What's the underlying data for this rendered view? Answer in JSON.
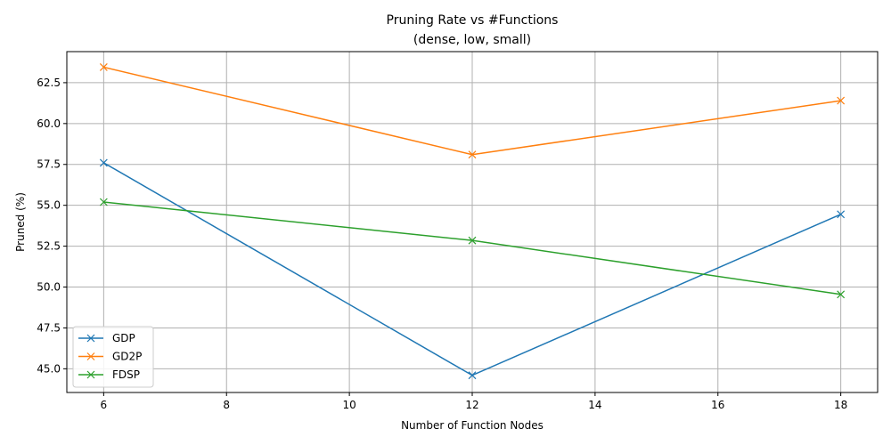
{
  "chart_data": {
    "type": "line",
    "title": "Pruning Rate vs #Functions",
    "subtitle": "(dense, low, small)",
    "xlabel": "Number of Function Nodes",
    "ylabel": "Pruned (%)",
    "x": [
      6,
      12,
      18
    ],
    "xlim": [
      5.4,
      18.6
    ],
    "ylim": [
      43.55,
      64.4
    ],
    "xticks": [
      6,
      8,
      10,
      12,
      14,
      16,
      18
    ],
    "xtick_labels": [
      "6",
      "8",
      "10",
      "12",
      "14",
      "16",
      "18"
    ],
    "yticks": [
      45.0,
      47.5,
      50.0,
      52.5,
      55.0,
      57.5,
      60.0,
      62.5
    ],
    "ytick_labels": [
      "45.0",
      "47.5",
      "50.0",
      "52.5",
      "55.0",
      "57.5",
      "60.0",
      "62.5"
    ],
    "grid": true,
    "legend_position": "lower-left",
    "marker": "x",
    "series": [
      {
        "name": "GDP",
        "color": "#1f77b4",
        "values": [
          57.6,
          44.6,
          54.45
        ]
      },
      {
        "name": "GD2P",
        "color": "#ff7f0e",
        "values": [
          63.45,
          58.1,
          61.4
        ]
      },
      {
        "name": "FDSP",
        "color": "#2ca02c",
        "values": [
          55.2,
          52.85,
          49.55
        ]
      }
    ]
  }
}
